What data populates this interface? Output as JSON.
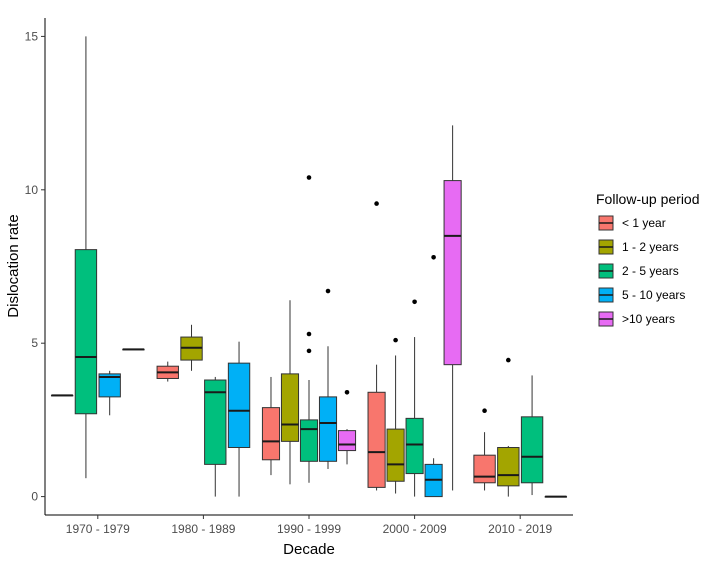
{
  "chart_data": {
    "type": "boxplot",
    "title": "",
    "xlabel": "Decade",
    "ylabel": "Dislocation rate",
    "ylim": [
      -0.6,
      15.6
    ],
    "yticks": [
      0,
      5,
      10,
      15
    ],
    "categories": [
      "1970 - 1979",
      "1980 - 1989",
      "1990 - 1999",
      "2000 - 2009",
      "2010 - 2019"
    ],
    "legend": {
      "title": "Follow-up period",
      "position": "right",
      "entries": [
        {
          "name": "< 1 year",
          "color": "#F8766D"
        },
        {
          "name": "1 - 2 years",
          "color": "#A3A500"
        },
        {
          "name": "2 - 5 years",
          "color": "#00BF7D"
        },
        {
          "name": "5 - 10 years",
          "color": "#00B0F6"
        },
        {
          "name": ">10 years",
          "color": "#E76BF3"
        }
      ]
    },
    "series": [
      {
        "name": "< 1 year",
        "color": "#F8766D",
        "boxes": [
          {
            "category": "1970 - 1979",
            "min": 3.3,
            "q1": 3.3,
            "median": 3.3,
            "q3": 3.3,
            "max": 3.3,
            "outliers": []
          },
          {
            "category": "1980 - 1989",
            "min": 3.75,
            "q1": 3.85,
            "median": 4.05,
            "q3": 4.25,
            "max": 4.4,
            "outliers": []
          },
          {
            "category": "1990 - 1999",
            "min": 0.7,
            "q1": 1.2,
            "median": 1.8,
            "q3": 2.9,
            "max": 3.9,
            "outliers": []
          },
          {
            "category": "2000 - 2009",
            "min": 0.2,
            "q1": 0.3,
            "median": 1.45,
            "q3": 3.4,
            "max": 4.3,
            "outliers": [
              9.55
            ]
          },
          {
            "category": "2010 - 2019",
            "min": 0.2,
            "q1": 0.45,
            "median": 0.65,
            "q3": 1.35,
            "max": 2.1,
            "outliers": [
              2.8
            ]
          }
        ]
      },
      {
        "name": "1 - 2 years",
        "color": "#A3A500",
        "boxes": [
          {
            "category": "1980 - 1989",
            "min": 4.1,
            "q1": 4.45,
            "median": 4.85,
            "q3": 5.2,
            "max": 5.6,
            "outliers": []
          },
          {
            "category": "1990 - 1999",
            "min": 0.4,
            "q1": 1.8,
            "median": 2.35,
            "q3": 4.0,
            "max": 6.4,
            "outliers": []
          },
          {
            "category": "2000 - 2009",
            "min": 0.1,
            "q1": 0.5,
            "median": 1.05,
            "q3": 2.2,
            "max": 4.6,
            "outliers": [
              5.1
            ]
          },
          {
            "category": "2010 - 2019",
            "min": 0.0,
            "q1": 0.35,
            "median": 0.7,
            "q3": 1.6,
            "max": 1.65,
            "outliers": [
              4.45
            ]
          }
        ]
      },
      {
        "name": "2 - 5 years",
        "color": "#00BF7D",
        "boxes": [
          {
            "category": "1970 - 1979",
            "min": 0.6,
            "q1": 2.7,
            "median": 4.55,
            "q3": 8.05,
            "max": 15.0,
            "outliers": []
          },
          {
            "category": "1980 - 1989",
            "min": 0.0,
            "q1": 1.05,
            "median": 3.4,
            "q3": 3.8,
            "max": 3.9,
            "outliers": []
          },
          {
            "category": "1990 - 1999",
            "min": 0.45,
            "q1": 1.15,
            "median": 2.2,
            "q3": 2.5,
            "max": 3.8,
            "outliers": [
              4.75,
              5.3,
              10.4
            ]
          },
          {
            "category": "2000 - 2009",
            "min": 0.0,
            "q1": 0.75,
            "median": 1.7,
            "q3": 2.55,
            "max": 5.2,
            "outliers": [
              6.35
            ]
          },
          {
            "category": "2010 - 2019",
            "min": 0.05,
            "q1": 0.45,
            "median": 1.3,
            "q3": 2.6,
            "max": 3.95,
            "outliers": []
          }
        ]
      },
      {
        "name": "5 - 10 years",
        "color": "#00B0F6",
        "boxes": [
          {
            "category": "1970 - 1979",
            "min": 2.65,
            "q1": 3.25,
            "median": 3.9,
            "q3": 4.0,
            "max": 4.1,
            "outliers": []
          },
          {
            "category": "1980 - 1989",
            "min": 0.0,
            "q1": 1.6,
            "median": 2.8,
            "q3": 4.35,
            "max": 5.05,
            "outliers": []
          },
          {
            "category": "1990 - 1999",
            "min": 0.9,
            "q1": 1.15,
            "median": 2.4,
            "q3": 3.25,
            "max": 4.9,
            "outliers": [
              6.7
            ]
          },
          {
            "category": "2000 - 2009",
            "min": 0.0,
            "q1": 0.0,
            "median": 0.55,
            "q3": 1.05,
            "max": 1.25,
            "outliers": [
              7.8
            ]
          }
        ]
      },
      {
        "name": ">10 years",
        "color": "#E76BF3",
        "boxes": [
          {
            "category": "1970 - 1979",
            "min": 4.8,
            "q1": 4.8,
            "median": 4.8,
            "q3": 4.8,
            "max": 4.8,
            "outliers": []
          },
          {
            "category": "1990 - 1999",
            "min": 1.05,
            "q1": 1.5,
            "median": 1.7,
            "q3": 2.15,
            "max": 2.2,
            "outliers": [
              3.4
            ]
          },
          {
            "category": "2000 - 2009",
            "min": 0.2,
            "q1": 4.3,
            "median": 8.5,
            "q3": 10.3,
            "max": 12.1,
            "outliers": []
          },
          {
            "category": "2010 - 2019",
            "min": 0.0,
            "q1": 0.0,
            "median": 0.0,
            "q3": 0.0,
            "max": 0.0,
            "outliers": []
          }
        ]
      }
    ]
  }
}
